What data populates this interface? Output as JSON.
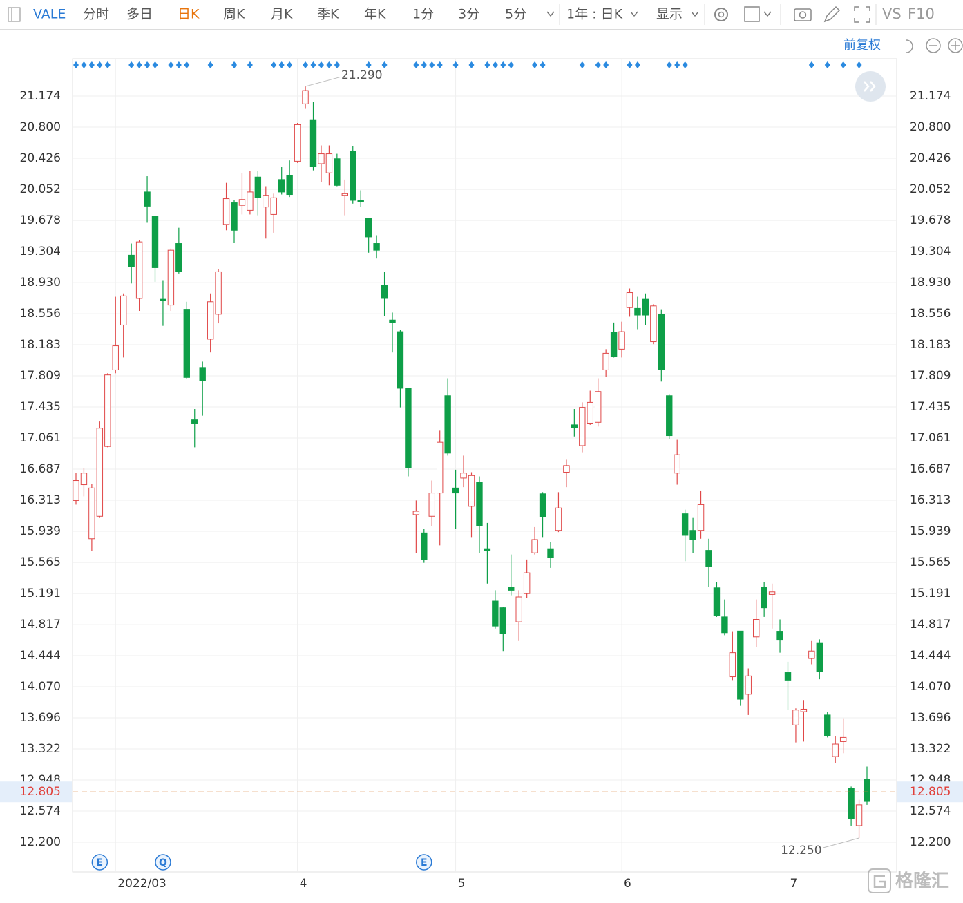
{
  "toolbar": {
    "symbol": "VALE",
    "tabs": [
      "分时",
      "多日",
      "日K",
      "周K",
      "月K",
      "季K",
      "年K",
      "1分",
      "3分",
      "5分"
    ],
    "period": "1年 : 日K",
    "display": "显示",
    "vs": "VS",
    "f10": "F10",
    "adjust": "前复权"
  },
  "event_markers": [
    "E",
    "Q",
    "E"
  ],
  "watermark": "格隆汇",
  "chart_data": {
    "type": "candlestick",
    "categories": [
      null,
      null,
      null,
      null,
      null,
      "2022/03",
      null,
      null,
      null,
      null,
      null,
      null,
      null,
      null,
      null,
      null,
      null,
      null,
      null,
      null,
      null,
      null,
      null,
      null,
      null,
      null,
      null,
      null,
      "4",
      null,
      null,
      null,
      null,
      null,
      null,
      null,
      null,
      null,
      null,
      null,
      null,
      null,
      null,
      null,
      null,
      null,
      null,
      null,
      "5",
      null,
      null,
      null,
      null,
      null,
      null,
      null,
      null,
      null,
      null,
      null,
      null,
      null,
      null,
      null,
      null,
      null,
      null,
      null,
      null,
      "6",
      null,
      null,
      null,
      null,
      null,
      null,
      null,
      null,
      null,
      null,
      null,
      null,
      null,
      null,
      null,
      null,
      null,
      null,
      null,
      null,
      "7",
      null,
      null,
      null,
      null,
      null,
      null,
      null,
      null,
      null,
      null
    ],
    "open": [
      16.31,
      16.5,
      15.85,
      16.12,
      16.96,
      17.88,
      18.42,
      19.26,
      18.74,
      20.02,
      19.73,
      18.73,
      18.66,
      19.4,
      18.61,
      17.28,
      17.91,
      18.25,
      18.55,
      19.63,
      19.89,
      19.86,
      19.8,
      20.2,
      19.84,
      19.75,
      20.17,
      20.22,
      20.39,
      21.08,
      20.89,
      20.36,
      20.25,
      20.42,
      19.98,
      20.51,
      19.92,
      19.7,
      19.4,
      18.9,
      18.48,
      18.34,
      17.66,
      16.14,
      15.92,
      16.12,
      16.4,
      17.57,
      16.46,
      16.58,
      16.24,
      16.53,
      15.73,
      15.1,
      15.02,
      15.27,
      14.85,
      15.19,
      15.68,
      16.39,
      15.73,
      15.95,
      16.65,
      17.22,
      16.97,
      17.24,
      17.25,
      17.88,
      18.33,
      18.13,
      18.63,
      18.62,
      18.73,
      18.22,
      18.55,
      17.57,
      16.64,
      16.15,
      15.95,
      15.95,
      15.71,
      15.26,
      14.91,
      14.19,
      14.74,
      13.98,
      14.67,
      15.27,
      15.18,
      14.73,
      14.24,
      13.61,
      13.77,
      14.41,
      14.6,
      13.73,
      13.23,
      13.41,
      12.85,
      12.4,
      12.96
    ],
    "high": [
      16.64,
      16.7,
      16.51,
      17.26,
      17.84,
      18.76,
      18.8,
      19.4,
      19.44,
      20.21,
      19.73,
      18.96,
      19.34,
      19.59,
      18.7,
      17.41,
      17.98,
      18.8,
      19.09,
      20.13,
      19.92,
      20.25,
      20.27,
      20.27,
      20.09,
      20.0,
      20.32,
      20.4,
      20.85,
      21.29,
      21.1,
      20.58,
      20.58,
      20.48,
      20.17,
      20.57,
      20.04,
      19.7,
      19.5,
      19.06,
      18.57,
      18.36,
      17.66,
      16.31,
      15.97,
      16.55,
      17.15,
      17.78,
      16.68,
      16.85,
      16.65,
      16.6,
      16.04,
      15.23,
      15.03,
      15.66,
      15.23,
      15.6,
      15.99,
      16.41,
      15.81,
      16.41,
      16.8,
      17.41,
      17.49,
      17.63,
      17.78,
      18.13,
      18.45,
      18.46,
      18.86,
      18.76,
      18.8,
      18.67,
      18.61,
      17.59,
      17.04,
      16.2,
      16.1,
      16.43,
      15.85,
      15.33,
      15.12,
      14.73,
      14.74,
      14.29,
      15.12,
      15.33,
      15.31,
      14.88,
      14.37,
      13.81,
      13.91,
      14.62,
      14.64,
      13.77,
      13.48,
      13.69,
      12.87,
      12.71,
      13.11
    ],
    "low": [
      16.26,
      16.36,
      15.7,
      16.1,
      16.95,
      17.84,
      18.03,
      18.92,
      18.59,
      19.65,
      18.94,
      18.41,
      18.59,
      19.04,
      17.77,
      16.95,
      17.33,
      18.09,
      18.44,
      19.56,
      19.41,
      19.75,
      19.75,
      19.74,
      19.46,
      19.53,
      19.99,
      19.96,
      20.37,
      21.02,
      20.28,
      20.14,
      20.1,
      20.09,
      19.74,
      19.88,
      19.84,
      19.29,
      19.22,
      18.53,
      18.09,
      17.43,
      16.6,
      15.68,
      15.56,
      16.0,
      15.77,
      16.85,
      15.97,
      16.47,
      15.87,
      15.68,
      15.31,
      14.77,
      14.5,
      15.17,
      14.62,
      15.14,
      15.66,
      15.87,
      15.5,
      15.93,
      16.47,
      17.08,
      16.89,
      17.22,
      17.2,
      17.8,
      18.03,
      18.03,
      18.52,
      18.37,
      18.42,
      18.19,
      17.74,
      17.05,
      16.5,
      15.58,
      15.68,
      15.85,
      15.27,
      14.91,
      14.69,
      14.15,
      13.84,
      13.73,
      14.55,
      14.91,
      14.77,
      14.48,
      13.79,
      13.4,
      13.41,
      14.34,
      14.16,
      13.46,
      13.15,
      13.27,
      12.4,
      12.25,
      12.65
    ],
    "close": [
      16.55,
      16.64,
      16.46,
      17.18,
      17.82,
      18.17,
      18.77,
      19.12,
      19.42,
      19.85,
      19.11,
      18.72,
      19.32,
      19.06,
      17.79,
      17.24,
      17.75,
      18.7,
      19.06,
      19.94,
      19.56,
      19.93,
      20.02,
      19.95,
      19.98,
      19.95,
      20.02,
      19.99,
      20.83,
      21.24,
      20.33,
      20.48,
      20.48,
      20.1,
      20.0,
      19.92,
      19.9,
      19.48,
      19.32,
      18.74,
      18.45,
      17.66,
      16.7,
      16.18,
      15.6,
      16.4,
      17.01,
      16.88,
      16.4,
      16.64,
      16.61,
      16.01,
      15.71,
      14.8,
      14.71,
      15.23,
      15.15,
      15.44,
      15.84,
      16.11,
      15.62,
      16.22,
      16.73,
      17.19,
      17.43,
      17.49,
      17.62,
      18.08,
      18.04,
      18.34,
      18.81,
      18.54,
      18.54,
      18.65,
      17.88,
      17.09,
      16.86,
      15.89,
      15.84,
      16.26,
      15.52,
      14.93,
      14.72,
      14.48,
      13.92,
      14.2,
      14.88,
      15.02,
      15.21,
      14.63,
      14.15,
      13.79,
      13.8,
      14.5,
      14.25,
      13.48,
      13.38,
      13.46,
      12.48,
      12.65,
      12.69
    ],
    "up_color": "#e04848",
    "down_color": "#0e9f48",
    "ylim": [
      11.843,
      21.623
    ],
    "yticks": [
      {
        "value": 21.174,
        "label": "21.174"
      },
      {
        "value": 20.8,
        "label": "20.800"
      },
      {
        "value": 20.426,
        "label": "20.426"
      },
      {
        "value": 20.052,
        "label": "20.052"
      },
      {
        "value": 19.678,
        "label": "19.678"
      },
      {
        "value": 19.304,
        "label": "19.304"
      },
      {
        "value": 18.93,
        "label": "18.930"
      },
      {
        "value": 18.556,
        "label": "18.556"
      },
      {
        "value": 18.183,
        "label": "18.183"
      },
      {
        "value": 17.809,
        "label": "17.809"
      },
      {
        "value": 17.435,
        "label": "17.435"
      },
      {
        "value": 17.061,
        "label": "17.061"
      },
      {
        "value": 16.687,
        "label": "16.687"
      },
      {
        "value": 16.313,
        "label": "16.313"
      },
      {
        "value": 15.939,
        "label": "15.939"
      },
      {
        "value": 15.565,
        "label": "15.565"
      },
      {
        "value": 15.191,
        "label": "15.191"
      },
      {
        "value": 14.817,
        "label": "14.817"
      },
      {
        "value": 14.444,
        "label": "14.444"
      },
      {
        "value": 14.07,
        "label": "14.070"
      },
      {
        "value": 13.696,
        "label": "13.696"
      },
      {
        "value": 13.322,
        "label": "13.322"
      },
      {
        "value": 12.948,
        "label": "12.948"
      },
      {
        "value": 12.574,
        "label": "12.574"
      },
      {
        "value": 12.2,
        "label": "12.200"
      }
    ],
    "grid": true,
    "current_price": {
      "value": 12.805,
      "label": "12.805"
    },
    "annotations": [
      {
        "value": 21.29,
        "label": "21.290"
      },
      {
        "value": 12.25,
        "label": "12.250"
      }
    ]
  }
}
